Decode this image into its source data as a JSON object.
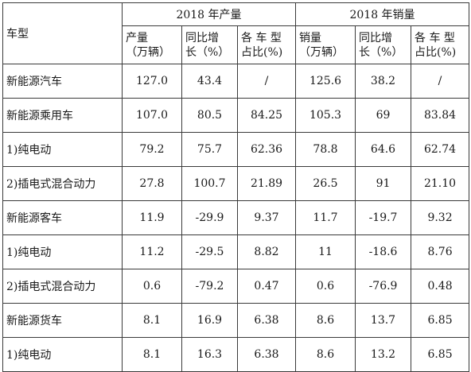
{
  "header": {
    "type_label": "车型",
    "production_group": "2018 年产量",
    "sales_group": "2018 年销量",
    "production_cols": [
      {
        "line1": "产量",
        "line2": "（万辆）"
      },
      {
        "line1": "同比增",
        "line2": "长（%）"
      },
      {
        "line1": "各 车 型",
        "line2": "占比(%)"
      }
    ],
    "sales_cols": [
      {
        "line1": "销量",
        "line2": "（万辆）"
      },
      {
        "line1": "同比增",
        "line2": "长（%）"
      },
      {
        "line1": "各 车 型",
        "line2": "占比(%)"
      }
    ]
  },
  "rows": [
    {
      "name": "新能源汽车",
      "p_qty": "127.0",
      "p_yoy": "43.4",
      "p_share": "/",
      "s_qty": "125.6",
      "s_yoy": "38.2",
      "s_share": "/"
    },
    {
      "name": "新能源乘用车",
      "p_qty": "107.0",
      "p_yoy": "80.5",
      "p_share": "84.25",
      "s_qty": "105.3",
      "s_yoy": "69",
      "s_share": "83.84"
    },
    {
      "name": "1)纯电动",
      "p_qty": "79.2",
      "p_yoy": "75.7",
      "p_share": "62.36",
      "s_qty": "78.8",
      "s_yoy": "64.6",
      "s_share": "62.74"
    },
    {
      "name": "2)插电式混合动力",
      "p_qty": "27.8",
      "p_yoy": "100.7",
      "p_share": "21.89",
      "s_qty": "26.5",
      "s_yoy": "91",
      "s_share": "21.10"
    },
    {
      "name": "新能源客车",
      "p_qty": "11.9",
      "p_yoy": "-29.9",
      "p_share": "9.37",
      "s_qty": "11.7",
      "s_yoy": "-19.7",
      "s_share": "9.32"
    },
    {
      "name": "1)纯电动",
      "p_qty": "11.2",
      "p_yoy": "-29.5",
      "p_share": "8.82",
      "s_qty": "11",
      "s_yoy": "-18.6",
      "s_share": "8.76"
    },
    {
      "name": "2)插电式混合动力",
      "p_qty": "0.6",
      "p_yoy": "-79.2",
      "p_share": "0.47",
      "s_qty": "0.6",
      "s_yoy": "-76.9",
      "s_share": "0.48"
    },
    {
      "name": "新能源货车",
      "p_qty": "8.1",
      "p_yoy": "16.9",
      "p_share": "6.38",
      "s_qty": "8.6",
      "s_yoy": "13.7",
      "s_share": "6.85"
    },
    {
      "name": "1)纯电动",
      "p_qty": "8.1",
      "p_yoy": "16.3",
      "p_share": "6.38",
      "s_qty": "8.6",
      "s_yoy": "13.2",
      "s_share": "6.85"
    }
  ]
}
